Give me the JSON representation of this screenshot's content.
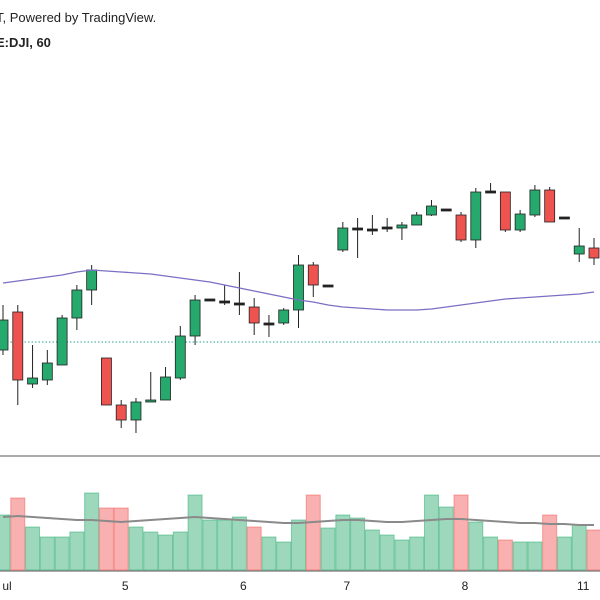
{
  "chart_data": {
    "type": "candlestick",
    "header": "T, Powered by TradingView.",
    "symbol": "E:DJI, 60",
    "categories": [
      "ul",
      null,
      null,
      null,
      null,
      null,
      null,
      null,
      "5",
      null,
      null,
      null,
      null,
      null,
      null,
      null,
      "6",
      null,
      null,
      null,
      null,
      null,
      null,
      "7",
      null,
      null,
      null,
      null,
      null,
      null,
      null,
      "8",
      null,
      null,
      null,
      null,
      null,
      null,
      null,
      "11",
      null
    ],
    "open": [
      150,
      188,
      116,
      120,
      135,
      182,
      210,
      142,
      95,
      80,
      98,
      100,
      122,
      164,
      200,
      198,
      196,
      193,
      176,
      177,
      190,
      235,
      214,
      250,
      271,
      270,
      272,
      272,
      275,
      285,
      290,
      285,
      260,
      308,
      308,
      270,
      285,
      310,
      282,
      246,
      252
    ],
    "high": [
      195,
      195,
      155,
      150,
      185,
      215,
      235,
      142,
      100,
      102,
      128,
      133,
      174,
      205,
      200,
      215,
      228,
      202,
      185,
      192,
      245,
      238,
      214,
      278,
      282,
      285,
      282,
      278,
      288,
      300,
      290,
      288,
      312,
      317,
      308,
      290,
      315,
      313,
      282,
      272,
      262
    ],
    "low": [
      145,
      95,
      112,
      115,
      135,
      170,
      195,
      95,
      72,
      67,
      98,
      100,
      120,
      155,
      200,
      195,
      185,
      165,
      163,
      175,
      172,
      203,
      214,
      248,
      242,
      265,
      268,
      260,
      275,
      284,
      290,
      258,
      252,
      307,
      268,
      268,
      283,
      278,
      282,
      238,
      235
    ],
    "close": [
      180,
      120,
      122,
      137,
      182,
      210,
      230,
      95,
      80,
      98,
      100,
      123,
      164,
      200,
      200,
      198,
      196,
      177,
      176,
      190,
      235,
      215,
      214,
      272,
      271,
      270,
      272,
      275,
      285,
      294,
      290,
      260,
      308,
      308,
      270,
      286,
      310,
      278,
      282,
      254,
      242
    ],
    "ma": [
      217,
      219,
      221,
      223,
      225,
      228,
      230,
      229,
      228,
      227,
      226,
      224,
      222,
      220,
      218,
      215,
      212,
      209,
      206,
      203,
      200,
      198,
      195,
      193,
      192,
      191,
      190,
      190,
      190,
      191,
      193,
      195,
      197,
      199,
      201,
      202,
      203,
      204,
      205,
      206,
      208
    ],
    "volume": [
      55,
      72,
      43,
      33,
      33,
      38,
      77,
      62,
      62,
      43,
      38,
      35,
      38,
      75,
      50,
      50,
      53,
      43,
      33,
      28,
      50,
      75,
      42,
      55,
      52,
      40,
      35,
      30,
      33,
      75,
      63,
      75,
      48,
      33,
      30,
      28,
      28,
      55,
      33,
      45,
      40
    ],
    "volume_ma": [
      53,
      54,
      53,
      52,
      51,
      50,
      50,
      49,
      48,
      49,
      50,
      51,
      52,
      53,
      52,
      51,
      50,
      49,
      48,
      47,
      47,
      48,
      49,
      50,
      50,
      49,
      48,
      48,
      49,
      50,
      51,
      51,
      50,
      49,
      48,
      47,
      47,
      46,
      46,
      45,
      45
    ],
    "price_line": 158,
    "ylim": [
      45,
      500
    ],
    "volume_lim": [
      0,
      114
    ],
    "up_color": "#26a96c",
    "down_color": "#ef5350",
    "doji_color": "#222222",
    "ma_color": "#7b6fc4",
    "volume_ma_color": "#8a8a8a",
    "price_line_color": "#26a69a"
  }
}
